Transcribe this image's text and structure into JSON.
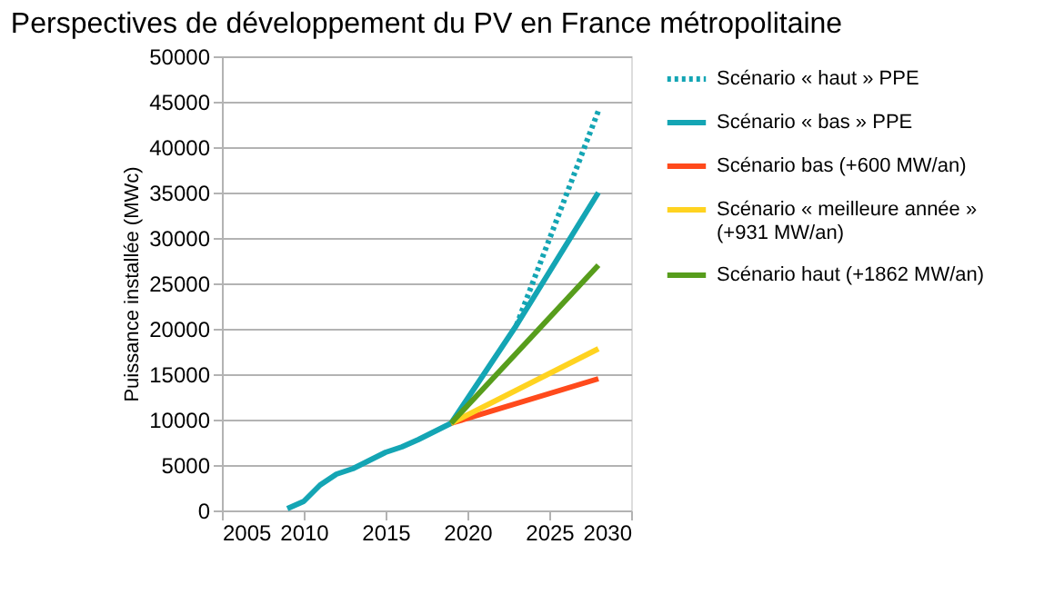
{
  "chart_data": {
    "type": "line",
    "title": "Perspectives de développement du PV en France métropolitaine",
    "ylabel": "Puissance installée (MWc)",
    "xlim": [
      2005,
      2030
    ],
    "xticks": [
      2005,
      2010,
      2015,
      2020,
      2025,
      2030
    ],
    "ylim": [
      0,
      50000
    ],
    "yticks": [
      0,
      5000,
      10000,
      15000,
      20000,
      25000,
      30000,
      35000,
      40000,
      45000,
      50000
    ],
    "grid": "y",
    "legend": "right",
    "marker": "none",
    "series": [
      {
        "name": "Scénario « haut » PPE",
        "color": "#14a5b4",
        "line_style": "dotted",
        "x": [
          2023,
          2028
        ],
        "values": [
          20400,
          44000
        ]
      },
      {
        "name": "Scénario « bas » PPE",
        "color": "#14a5b4",
        "line_style": "solid",
        "x": [
          2009,
          2010,
          2011,
          2012,
          2013,
          2014,
          2015,
          2016,
          2017,
          2018,
          2019,
          2023,
          2028
        ],
        "values": [
          200,
          1000,
          2800,
          4000,
          4600,
          5500,
          6400,
          7000,
          7800,
          8700,
          9600,
          20400,
          35000
        ]
      },
      {
        "name": "Scénario bas (+600 MW/an)",
        "color": "#ff4a1c",
        "line_style": "solid",
        "x": [
          2019,
          2028
        ],
        "values": [
          9600,
          14500
        ]
      },
      {
        "name": "Scénario « meilleure année » (+931 MW/an)",
        "color": "#ffd320",
        "line_style": "solid",
        "x": [
          2019,
          2028
        ],
        "values": [
          9600,
          17800
        ]
      },
      {
        "name": "Scénario haut (+1862 MW/an)",
        "color": "#579d1c",
        "line_style": "solid",
        "x": [
          2019,
          2028
        ],
        "values": [
          9600,
          27000
        ]
      }
    ]
  }
}
